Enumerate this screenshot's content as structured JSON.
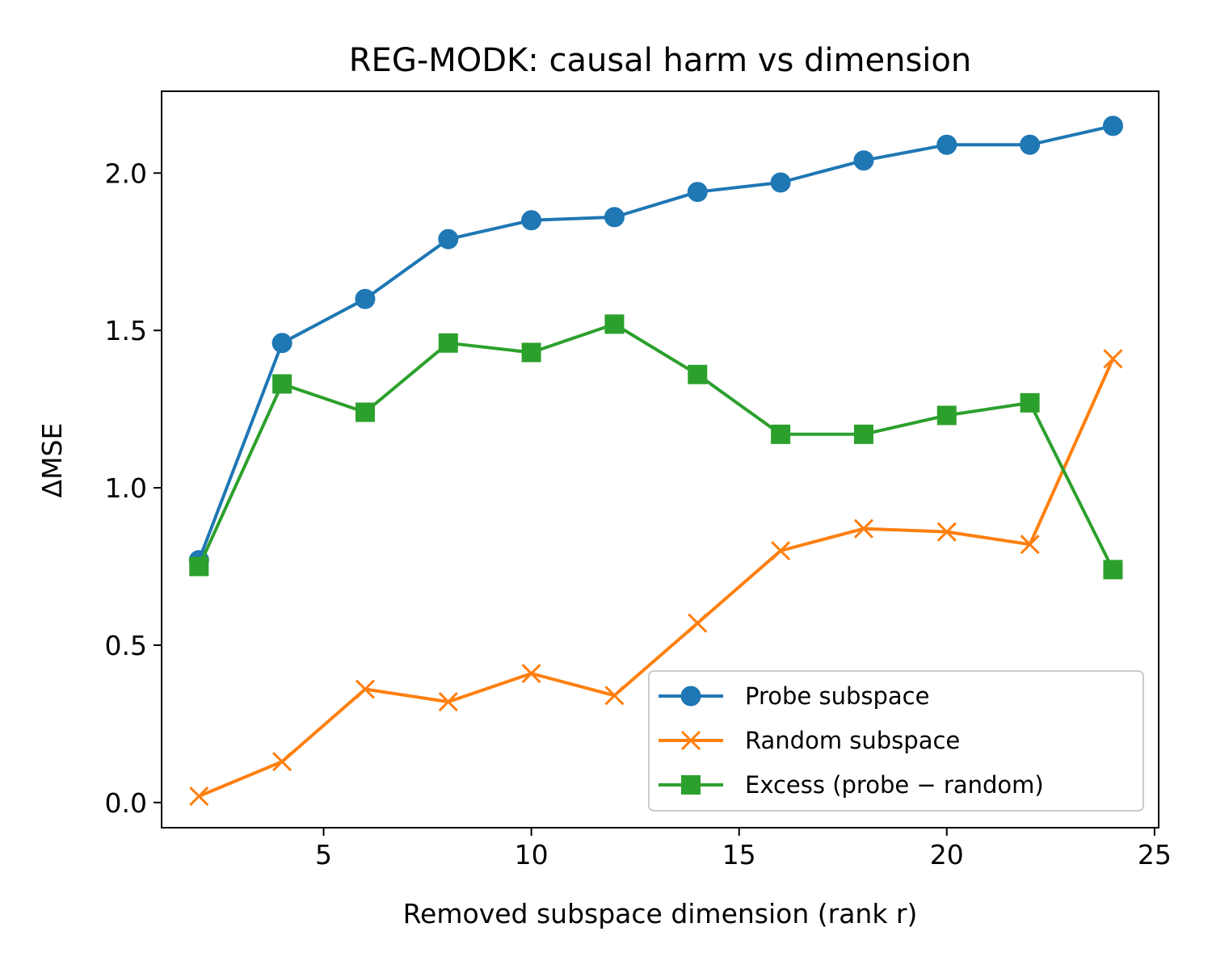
{
  "chart_data": {
    "type": "line",
    "title": "REG-MODK: causal harm vs dimension",
    "xlabel": "Removed subspace dimension (rank r)",
    "ylabel": "ΔMSE",
    "xlim": [
      1.1,
      25.1
    ],
    "ylim": [
      -0.08,
      2.26
    ],
    "xticks": [
      5,
      10,
      15,
      20,
      25
    ],
    "yticks": [
      0.0,
      0.5,
      1.0,
      1.5,
      2.0
    ],
    "xtick_labels": [
      "5",
      "10",
      "15",
      "20",
      "25"
    ],
    "ytick_labels": [
      "0.0",
      "0.5",
      "1.0",
      "1.5",
      "2.0"
    ],
    "grid": false,
    "legend_position": "lower-right",
    "x": [
      2,
      4,
      6,
      8,
      10,
      12,
      14,
      16,
      18,
      20,
      22,
      24
    ],
    "series": [
      {
        "name": "Probe subspace",
        "color": "#1f77b4",
        "marker": "circle",
        "values": [
          0.77,
          1.46,
          1.6,
          1.79,
          1.85,
          1.86,
          1.94,
          1.97,
          2.04,
          2.09,
          2.09,
          2.15
        ]
      },
      {
        "name": "Random subspace",
        "color": "#ff7f0e",
        "marker": "x",
        "values": [
          0.02,
          0.13,
          0.36,
          0.32,
          0.41,
          0.34,
          0.57,
          0.8,
          0.87,
          0.86,
          0.82,
          1.41
        ]
      },
      {
        "name": "Excess (probe − random)",
        "color": "#2ca02c",
        "marker": "square",
        "values": [
          0.75,
          1.33,
          1.24,
          1.46,
          1.43,
          1.52,
          1.36,
          1.17,
          1.17,
          1.23,
          1.27,
          0.74
        ]
      }
    ]
  }
}
